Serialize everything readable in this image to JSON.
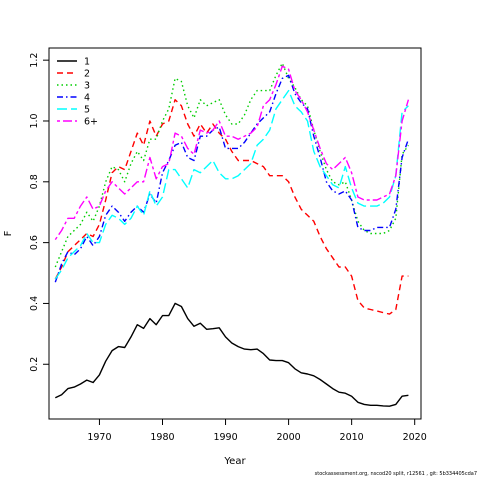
{
  "chart_data": {
    "type": "line",
    "xlabel": "Year",
    "ylabel": "F",
    "xlim": [
      1962,
      2021
    ],
    "ylim": [
      0.02,
      1.24
    ],
    "xticks": [
      1970,
      1980,
      1990,
      2000,
      2010,
      2020
    ],
    "yticks": [
      0.2,
      0.4,
      0.6,
      0.8,
      1.0,
      1.2
    ],
    "grid": false,
    "legend_position": "top-left",
    "x": [
      1963,
      1964,
      1965,
      1966,
      1967,
      1968,
      1969,
      1970,
      1971,
      1972,
      1973,
      1974,
      1975,
      1976,
      1977,
      1978,
      1979,
      1980,
      1981,
      1982,
      1983,
      1984,
      1985,
      1986,
      1987,
      1988,
      1989,
      1990,
      1991,
      1992,
      1993,
      1994,
      1995,
      1996,
      1997,
      1998,
      1999,
      2000,
      2001,
      2002,
      2003,
      2004,
      2005,
      2006,
      2007,
      2008,
      2009,
      2010,
      2011,
      2012,
      2013,
      2014,
      2015,
      2016,
      2017,
      2018,
      2019
    ],
    "series": [
      {
        "name": "1",
        "color": "#000000",
        "dash": "solid",
        "values": [
          0.09,
          0.1,
          0.12,
          0.125,
          0.135,
          0.148,
          0.14,
          0.165,
          0.21,
          0.245,
          0.258,
          0.255,
          0.29,
          0.33,
          0.318,
          0.35,
          0.33,
          0.36,
          0.36,
          0.4,
          0.39,
          0.35,
          0.325,
          0.335,
          0.315,
          0.317,
          0.32,
          0.29,
          0.27,
          0.258,
          0.25,
          0.248,
          0.25,
          0.235,
          0.214,
          0.212,
          0.212,
          0.205,
          0.185,
          0.172,
          0.168,
          0.162,
          0.15,
          0.135,
          0.12,
          0.108,
          0.105,
          0.095,
          0.075,
          0.068,
          0.065,
          0.065,
          0.063,
          0.062,
          0.068,
          0.095,
          0.098
        ]
      },
      {
        "name": "2",
        "color": "#ff0000",
        "dash": "dashed",
        "values": [
          0.48,
          0.52,
          0.57,
          0.59,
          0.61,
          0.63,
          0.62,
          0.66,
          0.74,
          0.83,
          0.85,
          0.84,
          0.9,
          0.96,
          0.92,
          1.0,
          0.95,
          0.99,
          1.0,
          1.07,
          1.05,
          0.99,
          0.95,
          0.99,
          0.96,
          0.99,
          0.96,
          0.94,
          0.9,
          0.87,
          0.87,
          0.87,
          0.86,
          0.85,
          0.82,
          0.82,
          0.82,
          0.8,
          0.75,
          0.71,
          0.69,
          0.67,
          0.62,
          0.58,
          0.55,
          0.52,
          0.52,
          0.49,
          0.41,
          0.385,
          0.38,
          0.375,
          0.37,
          0.365,
          0.38,
          0.49,
          0.49
        ]
      },
      {
        "name": "3",
        "color": "#00cd00",
        "dash": "dotted",
        "values": [
          0.52,
          0.57,
          0.62,
          0.64,
          0.66,
          0.7,
          0.67,
          0.72,
          0.8,
          0.85,
          0.84,
          0.8,
          0.86,
          0.9,
          0.87,
          0.94,
          0.94,
          1.0,
          1.04,
          1.14,
          1.13,
          1.05,
          1.01,
          1.07,
          1.05,
          1.06,
          1.07,
          1.02,
          0.99,
          0.99,
          1.02,
          1.07,
          1.1,
          1.1,
          1.1,
          1.15,
          1.19,
          1.14,
          1.11,
          1.07,
          1.05,
          0.97,
          0.9,
          0.84,
          0.8,
          0.79,
          0.8,
          0.74,
          0.67,
          0.64,
          0.63,
          0.63,
          0.63,
          0.64,
          0.68,
          0.89,
          0.92
        ]
      },
      {
        "name": "4",
        "color": "#0000ff",
        "dash": "dashdot",
        "values": [
          0.47,
          0.53,
          0.57,
          0.56,
          0.58,
          0.62,
          0.59,
          0.62,
          0.69,
          0.72,
          0.7,
          0.67,
          0.7,
          0.72,
          0.7,
          0.76,
          0.73,
          0.83,
          0.87,
          0.92,
          0.93,
          0.88,
          0.87,
          0.95,
          0.95,
          0.97,
          0.98,
          0.91,
          0.91,
          0.91,
          0.93,
          0.96,
          0.99,
          1.01,
          1.03,
          1.09,
          1.14,
          1.15,
          1.09,
          1.06,
          1.04,
          0.95,
          0.88,
          0.8,
          0.77,
          0.76,
          0.77,
          0.74,
          0.65,
          0.64,
          0.64,
          0.65,
          0.65,
          0.65,
          0.71,
          0.88,
          0.94
        ]
      },
      {
        "name": "5",
        "color": "#00ffff",
        "dash": "longdash",
        "values": [
          0.48,
          0.51,
          0.55,
          0.57,
          0.59,
          0.63,
          0.6,
          0.6,
          0.66,
          0.69,
          0.68,
          0.66,
          0.68,
          0.72,
          0.69,
          0.77,
          0.72,
          0.75,
          0.84,
          0.84,
          0.81,
          0.78,
          0.84,
          0.83,
          0.85,
          0.87,
          0.83,
          0.81,
          0.81,
          0.82,
          0.84,
          0.86,
          0.92,
          0.94,
          0.97,
          1.04,
          1.07,
          1.1,
          1.05,
          1.03,
          1.0,
          0.9,
          0.85,
          0.82,
          0.79,
          0.78,
          0.85,
          0.78,
          0.73,
          0.72,
          0.72,
          0.72,
          0.73,
          0.75,
          0.82,
          1.03,
          1.05
        ]
      },
      {
        "name": "6+",
        "color": "#ff00ff",
        "dash": "twodash",
        "values": [
          0.61,
          0.64,
          0.68,
          0.68,
          0.72,
          0.75,
          0.71,
          0.72,
          0.77,
          0.8,
          0.78,
          0.76,
          0.78,
          0.8,
          0.8,
          0.88,
          0.81,
          0.85,
          0.86,
          0.96,
          0.95,
          0.91,
          0.89,
          0.97,
          0.96,
          0.97,
          1.0,
          0.95,
          0.95,
          0.94,
          0.95,
          0.96,
          0.98,
          1.05,
          1.07,
          1.12,
          1.18,
          1.17,
          1.1,
          1.07,
          1.03,
          0.97,
          0.91,
          0.86,
          0.84,
          0.86,
          0.88,
          0.83,
          0.75,
          0.74,
          0.74,
          0.74,
          0.75,
          0.76,
          0.82,
          1.0,
          1.07
        ]
      }
    ]
  },
  "footer_text": "stockassessment.org, nscod20 split, r12561 , git: 5b334405cda7"
}
